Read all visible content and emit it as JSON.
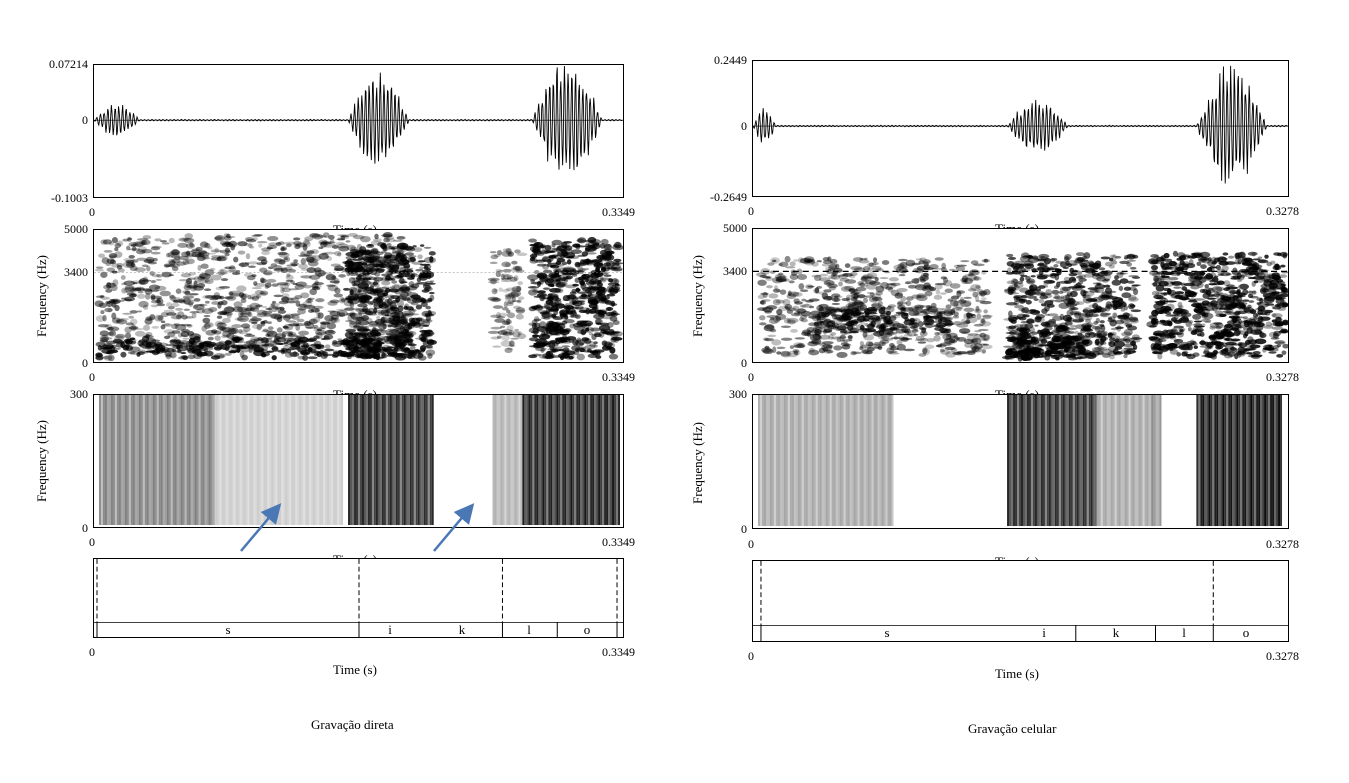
{
  "panels": [
    {
      "id": "left",
      "caption": "Gravação direta",
      "waveform": {
        "ymax": "0.07214",
        "yzero": "0",
        "ymin": "-0.1003",
        "xstart": "0",
        "xend": "0.3349",
        "xlabel": "Time (s)"
      },
      "spectrogram": {
        "ylabel": "Frequency (Hz)",
        "ymax": "5000",
        "ymid": "3400",
        "ymin": "0",
        "xstart": "0",
        "xend": "0.3349",
        "xlabel": "Time (s)",
        "reference_line": "dotted"
      },
      "lowband": {
        "ylabel": "Frequency (Hz)",
        "ymax": "300",
        "ymin": "0",
        "xstart": "0",
        "xend": "0.3349",
        "xlabel": "Time (s)"
      },
      "textgrid": {
        "xstart": "0",
        "xend": "0.3349",
        "xlabel": "Time (s)",
        "segments": [
          "s",
          "i",
          "k",
          "l",
          "o"
        ]
      },
      "arrows": 2,
      "arrow_color": "#4a78b5"
    },
    {
      "id": "right",
      "caption": "Gravação celular",
      "waveform": {
        "ymax": "0.2449",
        "yzero": "0",
        "ymin": "-0.2649",
        "xstart": "0",
        "xend": "0.3278",
        "xlabel": "Time (s)"
      },
      "spectrogram": {
        "ylabel": "Frequency (Hz)",
        "ymax": "5000",
        "ymid": "3400",
        "ymin": "0",
        "xstart": "0",
        "xend": "0.3278",
        "xlabel": "Time (s)",
        "reference_line": "dashed"
      },
      "lowband": {
        "ylabel": "Frequency (Hz)",
        "ymax": "300",
        "ymin": "0",
        "xstart": "0",
        "xend": "0.3278",
        "xlabel": "Time (s)"
      },
      "textgrid": {
        "xstart": "0",
        "xend": "0.3278",
        "xlabel": "Time (s)",
        "segments": [
          "s",
          "i",
          "k",
          "l",
          "o"
        ]
      }
    }
  ]
}
